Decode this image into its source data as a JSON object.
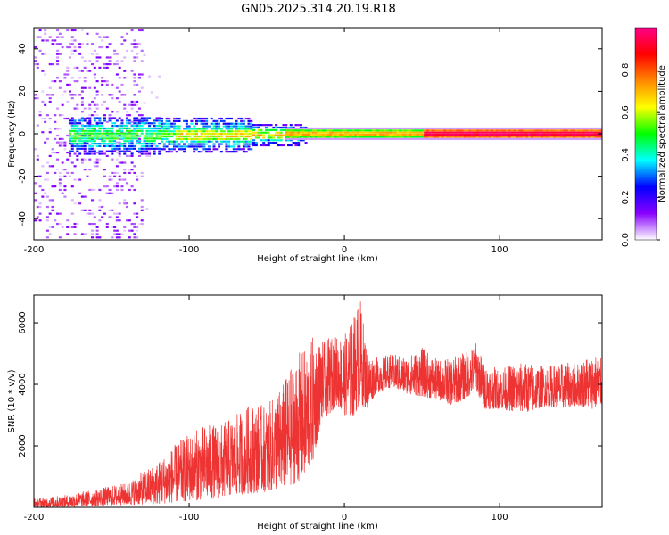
{
  "title": "GN05.2025.314.20.19.R18",
  "chart_data": [
    {
      "type": "heatmap",
      "xlabel": "Height of straight line (km)",
      "ylabel": "Frequency (Hz)",
      "xlim": [
        -200,
        166
      ],
      "ylim": [
        -50,
        50
      ],
      "xticks": [
        -200,
        -100,
        0,
        100
      ],
      "yticks": [
        -40,
        -20,
        0,
        20,
        40
      ],
      "grid": false,
      "description_regions": [
        {
          "x_range": [
            -200,
            -130
          ],
          "pattern": "sparse broadband noise across all frequencies"
        },
        {
          "x_range": [
            -175,
            -30
          ],
          "pattern": "energy concentrated within about ±8 Hz of 0 Hz"
        },
        {
          "x_range": [
            -30,
            166
          ],
          "pattern": "narrow line at about 0 Hz with peak amplitude"
        }
      ],
      "colorbar": {
        "label": "Normalized spectral amplitude",
        "range": [
          0,
          1
        ],
        "ticks": [
          0.0,
          0.2,
          0.4,
          0.6,
          0.8
        ],
        "tick_labels": [
          "0.0",
          "0.2",
          "0.4",
          "0.6",
          "0.8"
        ],
        "colormap": [
          "#ffffff",
          "#8800ff",
          "#0000ff",
          "#00ffff",
          "#00ff00",
          "#ffff00",
          "#ff8800",
          "#ff0000",
          "#ff0088"
        ]
      }
    },
    {
      "type": "line",
      "xlabel": "Height of straight line (km)",
      "ylabel": "SNR (10 * v/v)",
      "xlim": [
        -200,
        166
      ],
      "ylim": [
        0,
        6900
      ],
      "xticks": [
        -200,
        -100,
        0,
        100
      ],
      "yticks": [
        2000,
        4000,
        6000
      ],
      "grid": false,
      "color": "#ee3333",
      "envelope": {
        "x": [
          -200,
          -180,
          -160,
          -140,
          -120,
          -110,
          -100,
          -90,
          -80,
          -70,
          -60,
          -50,
          -40,
          -30,
          -25,
          -20,
          -15,
          -10,
          -5,
          0,
          5,
          10,
          15,
          20,
          30,
          40,
          50,
          60,
          70,
          80,
          85,
          90,
          100,
          110,
          120,
          130,
          140,
          150,
          160,
          166
        ],
        "low": [
          0,
          0,
          50,
          80,
          100,
          150,
          200,
          250,
          300,
          400,
          450,
          500,
          600,
          800,
          1000,
          1500,
          2800,
          3000,
          3300,
          3000,
          2900,
          3300,
          3200,
          3700,
          3900,
          3700,
          3600,
          3500,
          3300,
          3600,
          3800,
          3200,
          3200,
          3100,
          3100,
          3300,
          3200,
          3300,
          3200,
          3300
        ],
        "high": [
          300,
          400,
          600,
          800,
          1500,
          2000,
          2400,
          2700,
          2700,
          3000,
          3400,
          3300,
          4000,
          5000,
          5200,
          5600,
          5400,
          5500,
          5600,
          5600,
          6100,
          6900,
          5000,
          4900,
          5000,
          4900,
          5200,
          4800,
          4900,
          5100,
          5400,
          4700,
          4500,
          4700,
          4700,
          4600,
          4700,
          4700,
          5100,
          4800
        ]
      }
    }
  ]
}
